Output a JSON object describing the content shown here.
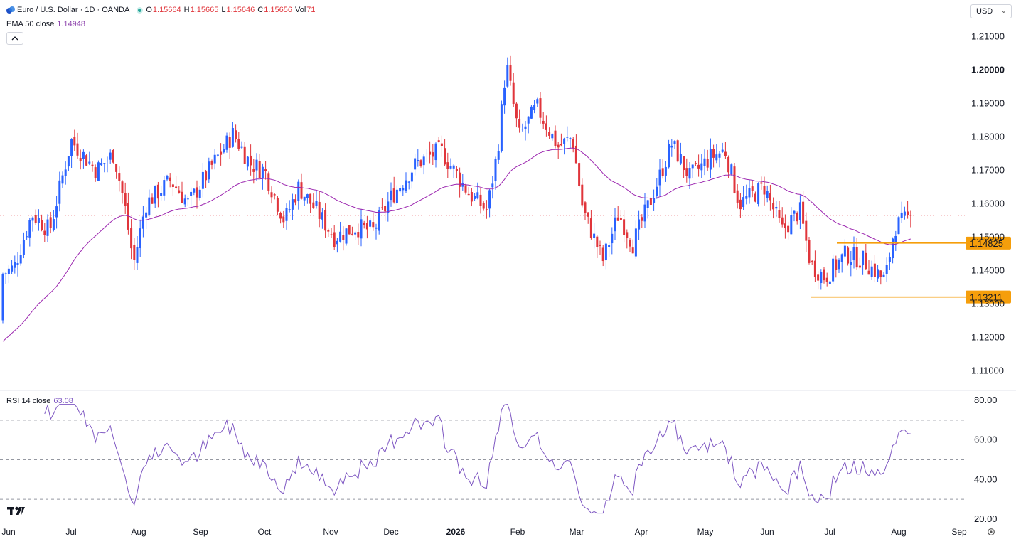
{
  "header": {
    "symbol": "Euro / U.S. Dollar · 1D · OANDA",
    "open_label": "O",
    "open": "1.15664",
    "high_label": "H",
    "high": "1.15665",
    "low_label": "L",
    "low": "1.15646",
    "close_label": "C",
    "close": "1.15656",
    "vol_label": "Vol",
    "vol": "71",
    "currency": "USD"
  },
  "indicators": {
    "ema_label": "EMA 50 close",
    "ema_value": "1.14948",
    "rsi_label": "RSI 14 close",
    "rsi_value": "63.08"
  },
  "colors": {
    "up": "#2962ff",
    "down": "#e0353b",
    "ema": "#9c27b0",
    "rsi": "#7e57c2",
    "level": "#f59e0b",
    "grid": "#f0f3fa"
  },
  "icons": [
    "tradingview-logo-icon",
    "chevron-down-icon",
    "chevron-up-icon",
    "settings-icon"
  ],
  "chart_data": [
    {
      "type": "candlestick",
      "title": "Euro / U.S. Dollar · 1D · OANDA",
      "ylim": [
        1.105,
        1.2125
      ],
      "y_ticks": [
        "1.21000",
        "1.20000",
        "1.19000",
        "1.18000",
        "1.17000",
        "1.16000",
        "1.15000",
        "1.14000",
        "1.13000",
        "1.12000",
        "1.11000"
      ],
      "x_ticks": [
        "Jun",
        "Jul",
        "Aug",
        "Sep",
        "Oct",
        "Nov",
        "Dec",
        "2026",
        "Feb",
        "Mar",
        "Apr",
        "May",
        "Jun",
        "Jul",
        "Aug",
        "Sep"
      ],
      "current_price": 1.15656,
      "levels": [
        {
          "value": 1.14825,
          "label": "1.14825"
        },
        {
          "value": 1.13211,
          "label": "1.13211"
        }
      ],
      "series_close_by_month": [
        {
          "month": "Jun",
          "close": 1.173
        },
        {
          "month": "Jul",
          "close": 1.165
        },
        {
          "month": "Aug",
          "close": 1.168
        },
        {
          "month": "Sep",
          "close": 1.17
        },
        {
          "month": "Oct",
          "close": 1.155
        },
        {
          "month": "Nov",
          "close": 1.153
        },
        {
          "month": "Dec",
          "close": 1.175
        },
        {
          "month": "Jan",
          "close": 1.19
        },
        {
          "month": "Feb",
          "close": 1.18
        },
        {
          "month": "Mar",
          "close": 1.153
        },
        {
          "month": "Apr",
          "close": 1.178
        },
        {
          "month": "May",
          "close": 1.165
        },
        {
          "month": "Jun",
          "close": 1.14
        },
        {
          "month": "Jul",
          "close": 1.14
        },
        {
          "month": "Aug",
          "close": 1.1566
        }
      ],
      "ema_last": 1.14948
    },
    {
      "type": "line",
      "title": "RSI 14 close",
      "ylim": [
        20,
        80
      ],
      "y_ticks": [
        "80.00",
        "60.00",
        "40.00",
        "20.00"
      ],
      "bands": [
        70,
        50,
        30
      ],
      "last": 63.08
    }
  ]
}
